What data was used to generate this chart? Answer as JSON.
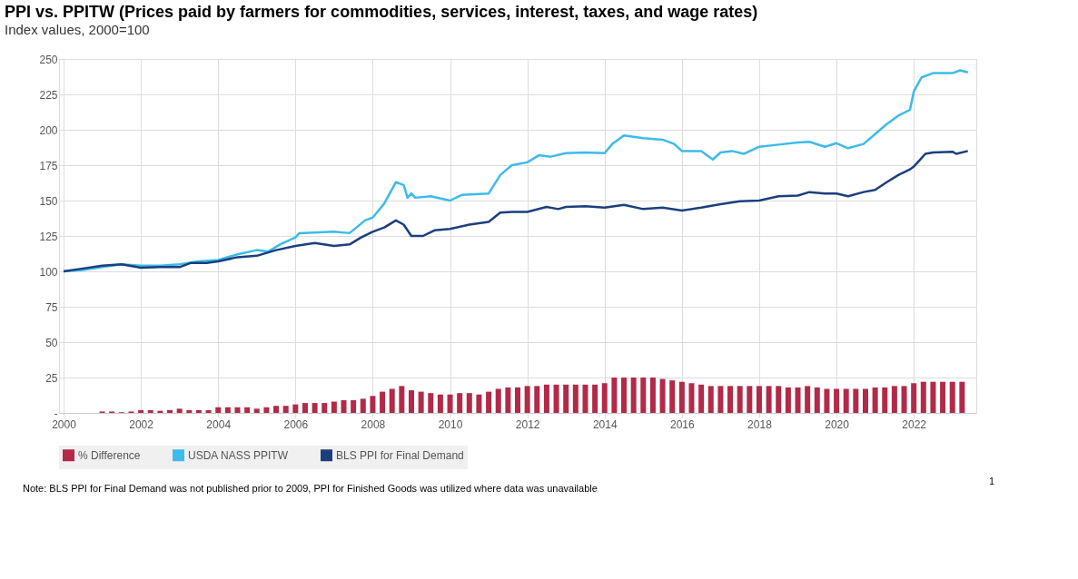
{
  "chart_data": {
    "type": "line",
    "title": "PPI vs. PPITW (Prices paid by farmers for commodities,  services, interest, taxes, and wage rates)",
    "subtitle": "Index values,  2000=100",
    "annotations": [
      "Note: BLS PPI  for Final Demand was not published prior to 2009, PPI for Finished Goods was utilized where data was unavailable",
      "1"
    ],
    "xlim": [
      2000,
      2023.5
    ],
    "xticks": [
      2000,
      2002,
      2004,
      2006,
      2008,
      2010,
      2012,
      2014,
      2016,
      2018,
      2020,
      2022
    ],
    "ylim": [
      0,
      250
    ],
    "yticks": [
      {
        "value": 0,
        "label": "-"
      },
      25,
      50,
      75,
      100,
      125,
      150,
      175,
      200,
      225,
      250
    ],
    "grid": true,
    "legend": "bottom",
    "series": [
      {
        "name": "% Difference",
        "type": "bar",
        "color": "#b22a48",
        "x": [
          2000,
          2000.25,
          2000.5,
          2000.75,
          2001,
          2001.25,
          2001.5,
          2001.75,
          2002,
          2002.25,
          2002.5,
          2002.75,
          2003,
          2003.25,
          2003.5,
          2003.75,
          2004,
          2004.25,
          2004.5,
          2004.75,
          2005,
          2005.25,
          2005.5,
          2005.75,
          2006,
          2006.25,
          2006.5,
          2006.75,
          2007,
          2007.25,
          2007.5,
          2007.75,
          2008,
          2008.25,
          2008.5,
          2008.75,
          2009,
          2009.25,
          2009.5,
          2009.75,
          2010,
          2010.25,
          2010.5,
          2010.75,
          2011,
          2011.25,
          2011.5,
          2011.75,
          2012,
          2012.25,
          2012.5,
          2012.75,
          2013,
          2013.25,
          2013.5,
          2013.75,
          2014,
          2014.25,
          2014.5,
          2014.75,
          2015,
          2015.25,
          2015.5,
          2015.75,
          2016,
          2016.25,
          2016.5,
          2016.75,
          2017,
          2017.25,
          2017.5,
          2017.75,
          2018,
          2018.25,
          2018.5,
          2018.75,
          2019,
          2019.25,
          2019.5,
          2019.75,
          2020,
          2020.25,
          2020.5,
          2020.75,
          2021,
          2021.25,
          2021.5,
          2021.75,
          2022,
          2022.25,
          2022.5,
          2022.75,
          2023,
          2023.25
        ],
        "values": [
          0,
          0,
          0,
          0,
          1,
          1,
          0.5,
          1,
          2,
          2,
          1.5,
          2,
          3,
          2,
          2,
          2,
          4,
          4,
          4,
          4,
          3,
          4,
          5,
          5,
          6,
          7,
          7,
          7,
          8,
          9,
          9,
          10,
          12,
          15,
          17,
          19,
          16,
          15,
          14,
          13,
          13,
          14,
          14,
          13,
          15,
          17,
          18,
          18,
          19,
          19,
          20,
          20,
          20,
          20,
          20,
          20,
          21,
          25,
          25,
          25,
          25,
          25,
          24,
          23,
          22,
          21,
          20,
          19,
          19,
          19,
          19,
          19,
          19,
          19,
          19,
          18,
          18,
          19,
          18,
          17,
          17,
          17,
          17,
          17,
          18,
          18,
          19,
          19,
          21,
          22,
          22,
          22,
          22,
          22
        ]
      },
      {
        "name": "USDA NASS PPITW",
        "color": "#3dbbea",
        "x": [
          2000,
          2000.5,
          2001,
          2001.5,
          2002,
          2002.5,
          2003,
          2003.5,
          2004,
          2004.5,
          2005,
          2005.3,
          2005.6,
          2006,
          2006.1,
          2007,
          2007.4,
          2007.8,
          2008,
          2008.3,
          2008.6,
          2008.8,
          2008.9,
          2009,
          2009.1,
          2009.5,
          2010,
          2010.3,
          2011,
          2011.3,
          2011.6,
          2012,
          2012.3,
          2012.6,
          2013,
          2013.5,
          2014,
          2014.2,
          2014.5,
          2015,
          2015.5,
          2015.8,
          2016,
          2016.5,
          2016.8,
          2017,
          2017.3,
          2017.6,
          2018,
          2018.5,
          2019,
          2019.3,
          2019.7,
          2020,
          2020.3,
          2020.7,
          2021,
          2021.3,
          2021.6,
          2021.9,
          2022,
          2022.2,
          2022.5,
          2023,
          2023.2,
          2023.4
        ],
        "values": [
          100,
          101,
          103,
          105,
          104,
          104,
          105,
          107,
          108,
          112,
          115,
          114,
          119,
          124,
          127,
          128,
          127,
          136,
          138,
          148,
          163,
          161,
          152,
          155,
          152,
          153,
          150,
          154,
          155,
          168,
          175,
          177,
          182,
          181,
          183.5,
          184,
          183.5,
          190,
          196,
          194,
          193,
          190,
          185,
          185,
          179,
          184,
          185,
          183,
          188,
          189.5,
          191,
          191.5,
          188,
          190.5,
          187,
          190,
          197,
          204,
          210,
          214,
          227,
          237,
          240,
          240,
          242,
          240.5
        ]
      },
      {
        "name": "BLS PPI for Final Demand",
        "color": "#1b3f7e",
        "x": [
          2000,
          2000.5,
          2001,
          2001.5,
          2002,
          2002.5,
          2003,
          2003.3,
          2003.7,
          2004,
          2004.5,
          2005,
          2005.5,
          2006,
          2006.5,
          2007,
          2007.4,
          2007.7,
          2008,
          2008.3,
          2008.6,
          2008.8,
          2009,
          2009.3,
          2009.6,
          2010,
          2010.5,
          2011,
          2011.3,
          2011.6,
          2012,
          2012.5,
          2012.8,
          2013,
          2013.5,
          2014,
          2014.5,
          2015,
          2015.5,
          2016,
          2016.5,
          2017,
          2017.5,
          2018,
          2018.5,
          2019,
          2019.3,
          2019.7,
          2020,
          2020.3,
          2020.7,
          2021,
          2021.3,
          2021.6,
          2021.9,
          2022,
          2022.3,
          2022.5,
          2023,
          2023.1,
          2023.4
        ],
        "values": [
          100,
          102,
          104,
          105,
          102.5,
          103,
          103,
          106,
          106,
          107,
          110,
          111,
          115,
          118,
          120,
          118,
          119,
          124,
          128,
          131,
          136,
          133,
          125,
          125,
          129,
          130,
          133,
          135,
          141.5,
          142,
          142,
          145.5,
          144,
          145.5,
          146,
          145,
          147,
          144,
          145,
          143,
          145,
          147.5,
          149.5,
          150,
          153,
          153.5,
          156,
          155,
          155,
          153,
          156,
          157.5,
          163,
          168,
          172,
          174,
          183,
          184,
          184.5,
          183,
          185
        ]
      }
    ]
  }
}
